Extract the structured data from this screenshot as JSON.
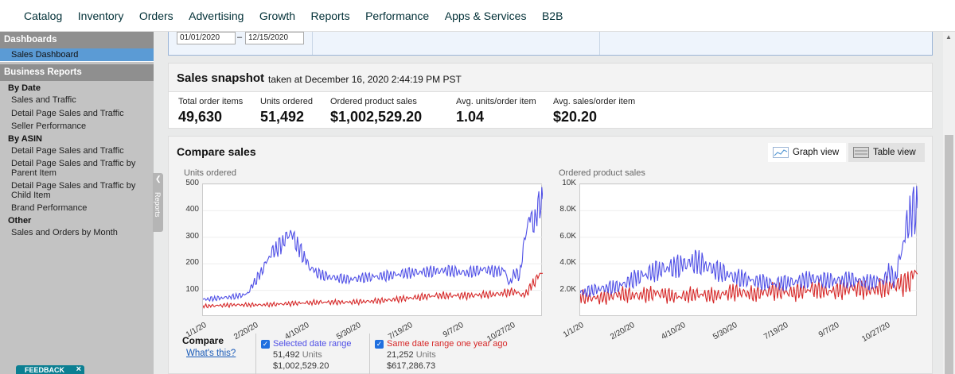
{
  "topnav": {
    "items": [
      "Catalog",
      "Inventory",
      "Orders",
      "Advertising",
      "Growth",
      "Reports",
      "Performance",
      "Apps & Services",
      "B2B"
    ]
  },
  "sidebar": {
    "dashboards_header": "Dashboards",
    "sales_dashboard": "Sales Dashboard",
    "business_reports_header": "Business Reports",
    "by_date": "By Date",
    "by_date_items": [
      "Sales and Traffic",
      "Detail Page Sales and Traffic",
      "Seller Performance"
    ],
    "by_asin": "By ASIN",
    "by_asin_items": [
      "Detail Page Sales and Traffic",
      "Detail Page Sales and Traffic by Parent Item",
      "Detail Page Sales and Traffic by Child Item",
      "Brand Performance"
    ],
    "other": "Other",
    "other_items": [
      "Sales and Orders by Month"
    ],
    "tab_label": "Reports"
  },
  "date_range": {
    "from": "01/01/2020",
    "to": "12/15/2020",
    "dash": "–"
  },
  "snapshot": {
    "title": "Sales snapshot",
    "subtitle": "taken at December 16, 2020 2:44:19 PM PST",
    "metrics": [
      {
        "label": "Total order items",
        "value": "49,630"
      },
      {
        "label": "Units ordered",
        "value": "51,492"
      },
      {
        "label": "Ordered product sales",
        "value": "$1,002,529.20"
      },
      {
        "label": "Avg. units/order item",
        "value": "1.04"
      },
      {
        "label": "Avg. sales/order item",
        "value": "$20.20"
      }
    ]
  },
  "compare_sales": {
    "title": "Compare sales",
    "graph_view": "Graph view",
    "table_view": "Table view",
    "compare_label": "Compare",
    "whats_this": "What's this?",
    "selected": {
      "label": "Selected date range",
      "units": "51,492",
      "units_word": "Units",
      "sales": "$1,002,529.20"
    },
    "last_year": {
      "label": "Same date range one year ago",
      "units": "21,252",
      "units_word": "Units",
      "sales": "$617,286.73"
    },
    "colors": {
      "selected": "#4f4fe6",
      "last_year": "#d62828",
      "link": "#1a5bb8"
    }
  },
  "feedback": {
    "label": "FEEDBACK",
    "close": "×"
  },
  "chart_data": [
    {
      "type": "line",
      "title": "Units ordered",
      "ylim": [
        0,
        500
      ],
      "yticks": [
        "500",
        "400",
        "300",
        "200",
        "100"
      ],
      "xticks": [
        "1/1/20",
        "2/20/20",
        "4/10/20",
        "5/30/20",
        "7/19/20",
        "9/7/20",
        "10/27/20"
      ],
      "series": [
        {
          "name": "Selected date range",
          "x_days": [
            0,
            15,
            30,
            45,
            60,
            70,
            80,
            90,
            100,
            110,
            120,
            130,
            150,
            170,
            190,
            210,
            230,
            250,
            270,
            290,
            300,
            310,
            315,
            320,
            325,
            330,
            335,
            340,
            345,
            349
          ],
          "values": [
            65,
            70,
            75,
            85,
            170,
            240,
            270,
            320,
            250,
            185,
            160,
            150,
            140,
            150,
            155,
            165,
            170,
            175,
            165,
            180,
            170,
            175,
            120,
            170,
            150,
            280,
            380,
            350,
            420,
            450
          ]
        },
        {
          "name": "Same date range one year ago",
          "x_days": [
            0,
            30,
            60,
            90,
            120,
            150,
            180,
            210,
            240,
            270,
            300,
            320,
            330,
            340,
            349
          ],
          "values": [
            40,
            45,
            45,
            50,
            55,
            55,
            60,
            70,
            80,
            80,
            85,
            95,
            80,
            130,
            175
          ]
        }
      ]
    },
    {
      "type": "line",
      "title": "Ordered product sales",
      "ylim": [
        0,
        10000
      ],
      "yticks": [
        "10K",
        "8.0K",
        "6.0K",
        "4.0K",
        "2.0K"
      ],
      "xticks": [
        "1/1/20",
        "2/20/20",
        "4/10/20",
        "5/30/20",
        "7/19/20",
        "9/7/20",
        "10/27/20"
      ],
      "series": [
        {
          "name": "Selected date range",
          "x_days": [
            0,
            20,
            40,
            60,
            80,
            100,
            120,
            140,
            160,
            180,
            200,
            220,
            240,
            260,
            280,
            300,
            315,
            320,
            325,
            330,
            340,
            349
          ],
          "values": [
            1800,
            2100,
            2300,
            3000,
            3500,
            3800,
            4200,
            3500,
            3000,
            2700,
            2500,
            2600,
            2900,
            2700,
            2800,
            2600,
            2800,
            3500,
            2600,
            4200,
            7500,
            8400
          ]
        },
        {
          "name": "Same date range one year ago",
          "x_days": [
            0,
            20,
            40,
            60,
            80,
            100,
            120,
            140,
            160,
            180,
            200,
            220,
            240,
            260,
            280,
            300,
            320,
            340,
            349
          ],
          "values": [
            1500,
            1400,
            1700,
            1600,
            1800,
            1500,
            1700,
            1600,
            1900,
            1700,
            2000,
            1800,
            2100,
            1900,
            2200,
            2000,
            2300,
            2600,
            3700
          ]
        }
      ]
    }
  ]
}
